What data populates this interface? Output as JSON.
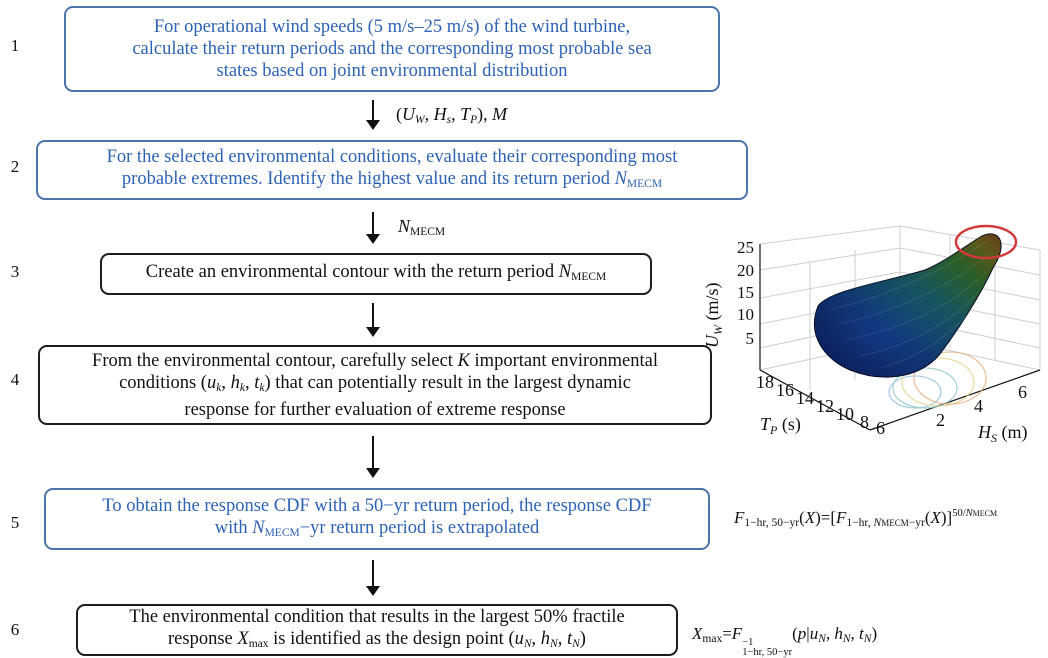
{
  "steps": [
    {
      "num": "1",
      "lines": [
        "For operational wind speeds (5 m/s–25 m/s) of the wind turbine,",
        "calculate their return periods and the corresponding most probable sea",
        "states based on joint environmental distribution"
      ]
    },
    {
      "num": "2",
      "line1": "For the selected environmental conditions, evaluate their corresponding most",
      "line2": "probable extremes. Identify the highest value and its return period ",
      "var": "N",
      "sub": "MECM"
    },
    {
      "num": "3",
      "text": "Create an environmental contour with the return period ",
      "var": "N",
      "sub": "MECM"
    },
    {
      "num": "4",
      "line1a": "From the environmental contour, carefully select ",
      "K": "K",
      "line1b": " important environmental",
      "line2a": "conditions (",
      "u": "u",
      "h": "h",
      "t": "t",
      "k": "k",
      "line2b": ") that can potentially result in the largest dynamic",
      "line3": "response for further evaluation of extreme response"
    },
    {
      "num": "5",
      "line1": "To obtain the response CDF with a 50−yr return period, the response CDF",
      "line2a": "with ",
      "N": "N",
      "sub": "MECM",
      "line2b": "−yr return period is extrapolated"
    },
    {
      "num": "6",
      "line1": "The environmental condition that results in the largest 50% fractile",
      "line2a": "response ",
      "X": "X",
      "max": "max",
      "line2b": " is identified as the design point (",
      "u": "u",
      "h": "h",
      "t": "t",
      "N": "N"
    }
  ],
  "arrows": {
    "a1": {
      "U": "U",
      "W": "W",
      "H": "H",
      "s": "s",
      "T": "T",
      "P": "P",
      "M": "M"
    },
    "a2": {
      "N": "N",
      "sub": "MECM"
    }
  },
  "formulas": {
    "f5": {
      "F": "F",
      "sub1": "1−hr, 50−yr",
      "X": "X",
      "sub2a": "1−hr, ",
      "N": "N",
      "MECM": "MECM",
      "sub2b": "−yr",
      "exp": "50/",
      "expN": "N",
      "expSub": "MECM"
    },
    "f6": {
      "X": "X",
      "max": "max",
      "F": "F",
      "sub": "1−hr, 50−yr",
      "sup": "−1",
      "p": "p",
      "u": "u",
      "h": "h",
      "t": "t",
      "N": "N"
    }
  },
  "plot": {
    "z_label": "U",
    "z_label_sub": "W",
    "z_label_unit": " (m/s)",
    "z_ticks": [
      "25",
      "20",
      "15",
      "10",
      "5"
    ],
    "y_label": "T",
    "y_label_sub": "P",
    "y_label_unit": " (s)",
    "y_ticks": [
      "18",
      "16",
      "14",
      "12",
      "10",
      "8",
      "6"
    ],
    "x_label": "H",
    "x_label_sub": "S",
    "x_label_unit": " (m)",
    "x_ticks": [
      "2",
      "4",
      "6"
    ]
  }
}
